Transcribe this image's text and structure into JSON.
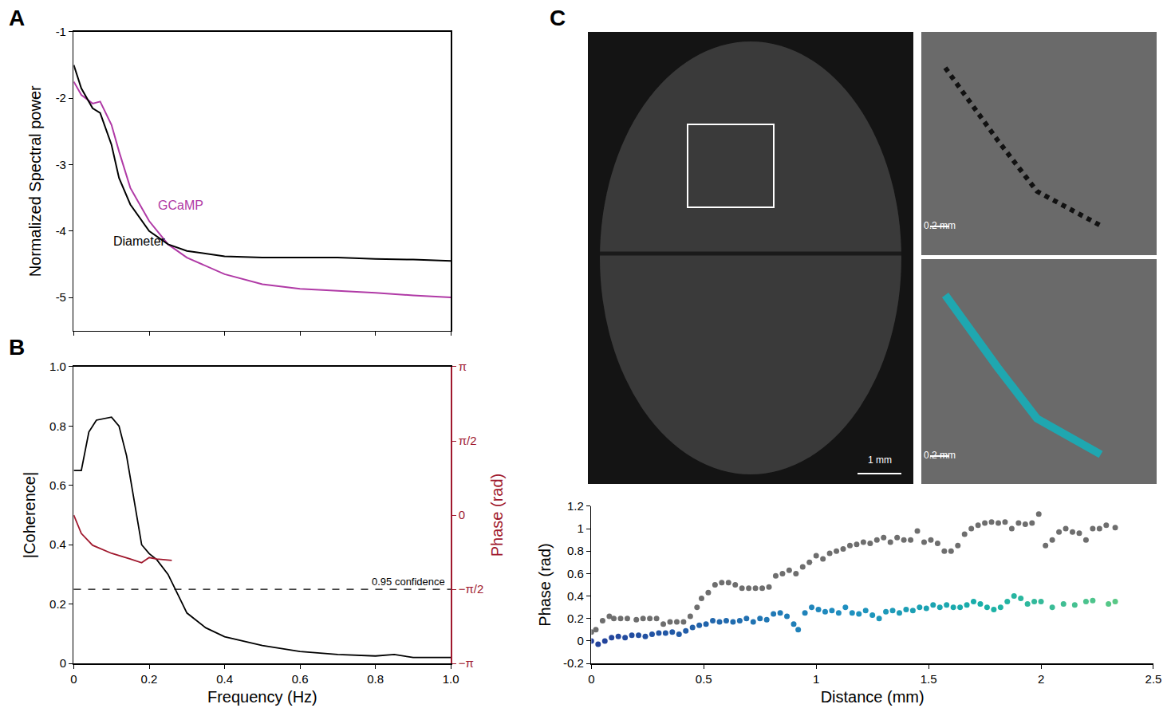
{
  "chart_data": [
    {
      "panel": "A",
      "type": "line",
      "y_label": "Normalized Spectral power",
      "tick_labels": "y",
      "x": [
        0,
        0.02,
        0.05,
        0.07,
        0.1,
        0.12,
        0.15,
        0.2,
        0.25,
        0.3,
        0.4,
        0.5,
        0.6,
        0.7,
        0.8,
        0.9,
        1.0
      ],
      "series": [
        {
          "name": "GCaMP",
          "color": "#b03aa6",
          "values": [
            -1.75,
            -1.95,
            -2.08,
            -2.05,
            -2.4,
            -2.8,
            -3.35,
            -3.85,
            -4.2,
            -4.4,
            -4.65,
            -4.8,
            -4.87,
            -4.9,
            -4.93,
            -4.97,
            -5.0
          ]
        },
        {
          "name": "Diameter",
          "color": "#000000",
          "values": [
            -1.5,
            -1.85,
            -2.15,
            -2.22,
            -2.7,
            -3.2,
            -3.6,
            -4.0,
            -4.2,
            -4.3,
            -4.38,
            -4.4,
            -4.4,
            -4.4,
            -4.42,
            -4.43,
            -4.45
          ]
        }
      ],
      "xlim": [
        0,
        1
      ],
      "xticks": [
        0,
        0.2,
        0.4,
        0.6,
        0.8,
        1
      ],
      "ylim": [
        -5.5,
        -1
      ],
      "yticks": [
        -5,
        -4,
        -3,
        -2,
        -1
      ]
    },
    {
      "panel": "B",
      "type": "line",
      "x_label": "Frequency (Hz)",
      "y_label": "|Coherence|",
      "y2_label": "Phase (rad)",
      "series": [
        {
          "color": "#000000",
          "x": [
            0,
            0.02,
            0.04,
            0.06,
            0.1,
            0.12,
            0.14,
            0.16,
            0.18,
            0.2,
            0.22,
            0.25,
            0.28,
            0.3,
            0.35,
            0.4,
            0.5,
            0.6,
            0.7,
            0.8,
            0.85,
            0.9,
            1.0
          ],
          "values": [
            0.65,
            0.65,
            0.78,
            0.82,
            0.83,
            0.8,
            0.7,
            0.55,
            0.4,
            0.37,
            0.35,
            0.3,
            0.22,
            0.17,
            0.12,
            0.09,
            0.06,
            0.04,
            0.03,
            0.025,
            0.03,
            0.02,
            0.02
          ]
        },
        {
          "color": "#a0182d",
          "axis": "y2",
          "x": [
            0,
            0.02,
            0.05,
            0.1,
            0.15,
            0.18,
            0.2,
            0.22,
            0.26
          ],
          "values": [
            0,
            -0.39,
            -0.64,
            -0.81,
            -0.93,
            -1.01,
            -0.9,
            -0.93,
            -0.96
          ]
        }
      ],
      "annotations": [
        {
          "text": "0.95 confidence",
          "y": 0.25
        }
      ],
      "xlim": [
        0,
        1
      ],
      "xticks": [
        0,
        0.2,
        0.4,
        0.6,
        0.8,
        {
          "value": 1,
          "label": "1.0"
        }
      ],
      "ylim": [
        0,
        1
      ],
      "yticks": [
        0,
        0.2,
        0.4,
        0.6,
        0.8,
        {
          "value": 1,
          "label": "1.0"
        }
      ],
      "y2lim": [
        -3.14159,
        3.14159
      ],
      "y2ticks": [
        {
          "value": -3.14159,
          "label": "−π"
        },
        {
          "value": -1.5708,
          "label": "−π/2"
        },
        0,
        {
          "value": 1.5708,
          "label": "π/2"
        },
        {
          "value": 3.14159,
          "label": "π"
        }
      ]
    },
    {
      "type": "scatter",
      "x_label": "Distance (mm)",
      "y_label": "Phase (rad)",
      "series": [
        {
          "color": "#6e6e6e",
          "x": [
            0,
            0.02,
            0.05,
            0.08,
            0.1,
            0.13,
            0.16,
            0.2,
            0.23,
            0.26,
            0.29,
            0.32,
            0.35,
            0.38,
            0.41,
            0.44,
            0.47,
            0.49,
            0.52,
            0.55,
            0.58,
            0.61,
            0.64,
            0.67,
            0.7,
            0.73,
            0.76,
            0.79,
            0.82,
            0.85,
            0.88,
            0.91,
            0.94,
            0.97,
            1.0,
            1.03,
            1.06,
            1.09,
            1.12,
            1.15,
            1.18,
            1.21,
            1.24,
            1.27,
            1.3,
            1.33,
            1.36,
            1.39,
            1.42,
            1.45,
            1.48,
            1.51,
            1.54,
            1.57,
            1.6,
            1.63,
            1.66,
            1.69,
            1.72,
            1.75,
            1.78,
            1.81,
            1.84,
            1.87,
            1.9,
            1.93,
            1.96,
            1.99,
            2.02,
            2.05,
            2.08,
            2.11,
            2.14,
            2.17,
            2.2,
            2.23,
            2.26,
            2.29,
            2.33
          ],
          "values": [
            0.08,
            0.1,
            0.18,
            0.22,
            0.2,
            0.2,
            0.2,
            0.19,
            0.2,
            0.2,
            0.2,
            0.15,
            0.17,
            0.17,
            0.17,
            0.22,
            0.3,
            0.38,
            0.43,
            0.5,
            0.52,
            0.52,
            0.5,
            0.47,
            0.47,
            0.47,
            0.47,
            0.48,
            0.58,
            0.6,
            0.63,
            0.6,
            0.66,
            0.7,
            0.76,
            0.73,
            0.78,
            0.8,
            0.82,
            0.85,
            0.86,
            0.88,
            0.87,
            0.9,
            0.92,
            0.88,
            0.92,
            0.9,
            0.9,
            0.98,
            0.88,
            0.9,
            0.87,
            0.8,
            0.8,
            0.85,
            0.95,
            1.0,
            1.03,
            1.05,
            1.06,
            1.05,
            1.06,
            1.0,
            1.05,
            1.04,
            1.05,
            1.13,
            0.85,
            0.9,
            0.97,
            1.0,
            0.97,
            0.96,
            0.9,
            1.0,
            1.0,
            1.03,
            1.01
          ]
        },
        {
          "x": [
            0,
            0.03,
            0.06,
            0.09,
            0.12,
            0.15,
            0.18,
            0.21,
            0.24,
            0.27,
            0.3,
            0.33,
            0.36,
            0.39,
            0.42,
            0.45,
            0.48,
            0.51,
            0.54,
            0.57,
            0.6,
            0.63,
            0.66,
            0.69,
            0.72,
            0.75,
            0.78,
            0.81,
            0.84,
            0.87,
            0.9,
            0.92,
            0.95,
            0.98,
            1.01,
            1.04,
            1.07,
            1.1,
            1.13,
            1.16,
            1.19,
            1.22,
            1.25,
            1.28,
            1.31,
            1.34,
            1.37,
            1.4,
            1.43,
            1.46,
            1.49,
            1.52,
            1.55,
            1.58,
            1.61,
            1.64,
            1.67,
            1.7,
            1.73,
            1.76,
            1.79,
            1.82,
            1.85,
            1.88,
            1.91,
            1.94,
            1.97,
            2.0,
            2.05,
            2.1,
            2.15,
            2.2,
            2.23,
            2.3,
            2.33
          ],
          "values": [
            0,
            -0.03,
            0,
            0.03,
            0.04,
            0.03,
            0.05,
            0.05,
            0.04,
            0.06,
            0.07,
            0.07,
            0.08,
            0.06,
            0.09,
            0.12,
            0.14,
            0.15,
            0.18,
            0.17,
            0.18,
            0.17,
            0.18,
            0.2,
            0.17,
            0.2,
            0.19,
            0.24,
            0.25,
            0.22,
            0.15,
            0.1,
            0.25,
            0.3,
            0.28,
            0.26,
            0.27,
            0.25,
            0.3,
            0.25,
            0.24,
            0.27,
            0.23,
            0.2,
            0.26,
            0.27,
            0.25,
            0.28,
            0.27,
            0.3,
            0.29,
            0.32,
            0.3,
            0.32,
            0.3,
            0.3,
            0.32,
            0.35,
            0.33,
            0.3,
            0.28,
            0.3,
            0.35,
            0.4,
            0.38,
            0.33,
            0.35,
            0.35,
            0.3,
            0.33,
            0.32,
            0.35,
            0.36,
            0.33,
            0.35
          ]
        }
      ],
      "xlim": [
        0,
        2.5
      ],
      "xticks": [
        0,
        0.5,
        1,
        1.5,
        2,
        2.5
      ],
      "ylim": [
        -0.2,
        1.2
      ],
      "yticks": [
        -0.2,
        0,
        0.2,
        0.4,
        0.6,
        0.8,
        1,
        1.2
      ]
    }
  ],
  "images": {
    "panel": "C",
    "scale_bars": [
      "1 mm",
      "0.2 mm",
      "0.2 mm"
    ]
  }
}
